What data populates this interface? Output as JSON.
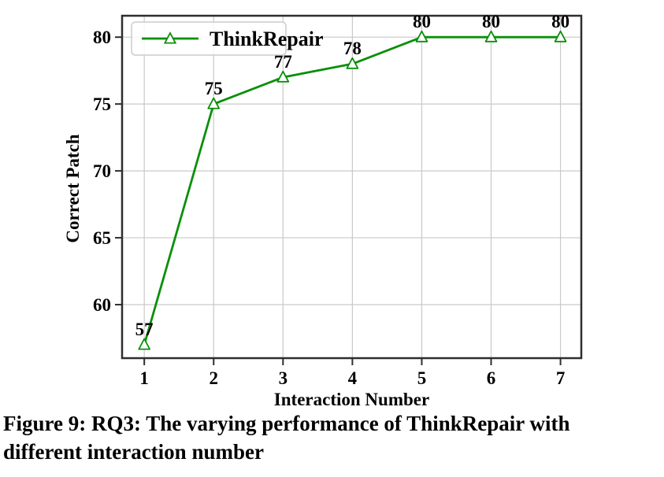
{
  "figure": {
    "caption_lines": [
      "Figure 9: RQ3: The varying performance of ThinkRepair with",
      "different interaction number"
    ]
  },
  "chart_data": {
    "type": "line",
    "title": "",
    "xlabel": "Interaction Number",
    "ylabel": "Correct Patch",
    "x": [
      1,
      2,
      3,
      4,
      5,
      6,
      7
    ],
    "series": [
      {
        "name": "ThinkRepair",
        "values": [
          57,
          75,
          77,
          78,
          80,
          80,
          80
        ],
        "point_labels": [
          "57",
          "75",
          "77",
          "78",
          "80",
          "80",
          "80"
        ],
        "color": "#0a8f0a",
        "marker": "triangle-open"
      }
    ],
    "xticks": [
      "1",
      "2",
      "3",
      "4",
      "5",
      "6",
      "7"
    ],
    "yticks": [
      60,
      65,
      70,
      75,
      80
    ],
    "xlim": [
      0.68,
      7.3
    ],
    "ylim": [
      56,
      81.6
    ],
    "grid": true,
    "legend": {
      "position": "upper-left",
      "entries": [
        "ThinkRepair"
      ]
    },
    "colors": {
      "line": "#0a8f0a",
      "marker_fill": "#ffffff",
      "grid": "#c9c9c9",
      "frame": "#2e2e2e",
      "text": "#000000",
      "legend_border": "#cccccc",
      "legend_bg": "#ffffff"
    }
  }
}
